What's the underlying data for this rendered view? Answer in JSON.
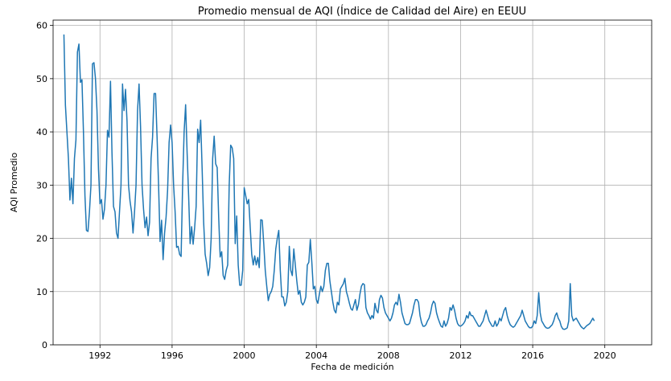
{
  "chart_data": {
    "type": "line",
    "title": "Promedio mensual de AQI (Índice de Calidad del Aire) en EEUU",
    "xlabel": "Fecha de medición",
    "ylabel": "AQI Promedio",
    "x_ticks": [
      1992,
      1996,
      2000,
      2004,
      2008,
      2012,
      2016,
      2020
    ],
    "y_ticks": [
      0,
      10,
      20,
      30,
      40,
      50,
      60
    ],
    "xlim": [
      1989.4,
      2022.6
    ],
    "ylim": [
      0,
      61
    ],
    "grid": true,
    "line_color": "#1f77b4",
    "series": [
      {
        "x_start": 1990.0,
        "x_step_months": 1,
        "values": [
          58.3,
          45.0,
          40.0,
          35.0,
          27.2,
          31.3,
          26.5,
          35.0,
          38.5,
          55.0,
          56.5,
          49.3,
          49.8,
          40.0,
          28.0,
          21.5,
          21.3,
          25.0,
          30.0,
          52.8,
          53.0,
          50.0,
          44.0,
          33.0,
          26.5,
          27.3,
          23.6,
          25.5,
          30.0,
          40.3,
          39.0,
          49.5,
          36.0,
          26.0,
          25.0,
          21.0,
          20.0,
          25.0,
          30.0,
          49.0,
          44.0,
          48.0,
          42.0,
          30.0,
          27.0,
          25.0,
          21.0,
          25.0,
          30.0,
          44.0,
          49.0,
          41.0,
          30.0,
          25.5,
          22.0,
          24.0,
          20.5,
          23.0,
          35.0,
          39.0,
          47.2,
          47.2,
          39.0,
          30.0,
          19.4,
          23.4,
          16.0,
          21.0,
          24.0,
          29.0,
          38.0,
          41.3,
          38.0,
          30.0,
          25.0,
          18.3,
          18.5,
          17.0,
          16.6,
          30.0,
          40.0,
          45.1,
          36.0,
          28.0,
          19.0,
          22.2,
          18.9,
          22.0,
          26.0,
          40.5,
          38.0,
          42.2,
          33.0,
          23.0,
          17.0,
          15.3,
          13.0,
          14.5,
          20.0,
          35.0,
          39.2,
          34.0,
          33.3,
          24.0,
          16.5,
          17.5,
          13.0,
          12.3,
          14.0,
          15.0,
          30.0,
          37.5,
          37.0,
          35.0,
          19.0,
          24.2,
          15.0,
          11.2,
          11.2,
          14.0,
          29.5,
          28.0,
          26.5,
          27.3,
          22.0,
          17.0,
          15.0,
          16.7,
          15.0,
          16.4,
          14.5,
          23.5,
          23.4,
          19.0,
          14.0,
          11.0,
          8.3,
          9.5,
          10.0,
          11.0,
          14.0,
          18.0,
          20.0,
          21.5,
          14.0,
          9.0,
          9.0,
          7.3,
          8.0,
          10.0,
          18.5,
          14.0,
          13.0,
          18.0,
          15.0,
          12.0,
          9.5,
          10.2,
          8.0,
          7.5,
          8.0,
          9.0,
          15.0,
          15.5,
          19.8,
          15.5,
          10.5,
          11.0,
          8.5,
          7.8,
          9.5,
          11.0,
          10.0,
          11.0,
          14.0,
          15.3,
          15.3,
          12.0,
          10.0,
          8.0,
          6.5,
          6.0,
          8.0,
          7.5,
          10.5,
          11.0,
          11.5,
          12.5,
          10.0,
          9.0,
          7.8,
          6.8,
          6.5,
          7.5,
          8.5,
          6.5,
          7.5,
          9.5,
          11.0,
          11.5,
          11.3,
          7.0,
          6.0,
          5.5,
          4.8,
          5.5,
          5.0,
          7.8,
          6.5,
          6.0,
          8.5,
          9.3,
          8.8,
          7.0,
          6.0,
          5.5,
          5.0,
          4.5,
          5.0,
          6.0,
          7.5,
          8.0,
          7.5,
          9.5,
          8.0,
          6.0,
          5.0,
          4.0,
          3.8,
          3.8,
          4.0,
          5.0,
          6.0,
          7.5,
          8.5,
          8.5,
          8.0,
          5.5,
          4.2,
          3.5,
          3.5,
          3.8,
          4.5,
          5.0,
          6.0,
          7.5,
          8.2,
          7.8,
          6.0,
          5.0,
          4.2,
          3.5,
          3.3,
          4.5,
          3.5,
          4.0,
          5.0,
          7.0,
          6.5,
          7.5,
          6.5,
          5.0,
          4.0,
          3.6,
          3.5,
          3.7,
          4.0,
          4.5,
          5.5,
          5.0,
          6.2,
          5.5,
          5.5,
          5.0,
          4.5,
          4.0,
          3.5,
          3.5,
          4.0,
          4.5,
          5.5,
          6.5,
          5.5,
          4.5,
          4.0,
          3.5,
          3.5,
          4.5,
          3.5,
          4.0,
          5.0,
          4.5,
          5.5,
          6.5,
          7.0,
          5.5,
          4.5,
          3.8,
          3.5,
          3.3,
          3.5,
          4.0,
          4.5,
          5.0,
          5.5,
          6.5,
          5.5,
          4.5,
          4.0,
          3.5,
          3.2,
          3.2,
          3.5,
          4.5,
          4.0,
          5.5,
          9.8,
          6.0,
          4.5,
          4.0,
          3.5,
          3.2,
          3.1,
          3.2,
          3.5,
          3.8,
          4.5,
          5.5,
          6.0,
          5.0,
          4.5,
          3.5,
          3.0,
          2.9,
          3.0,
          3.2,
          4.5,
          11.5,
          5.5,
          4.5,
          4.8,
          5.0,
          4.5,
          4.0,
          3.5,
          3.2,
          3.0,
          3.3,
          3.6,
          3.8,
          4.0,
          4.5,
          5.0,
          4.5
        ]
      }
    ]
  }
}
